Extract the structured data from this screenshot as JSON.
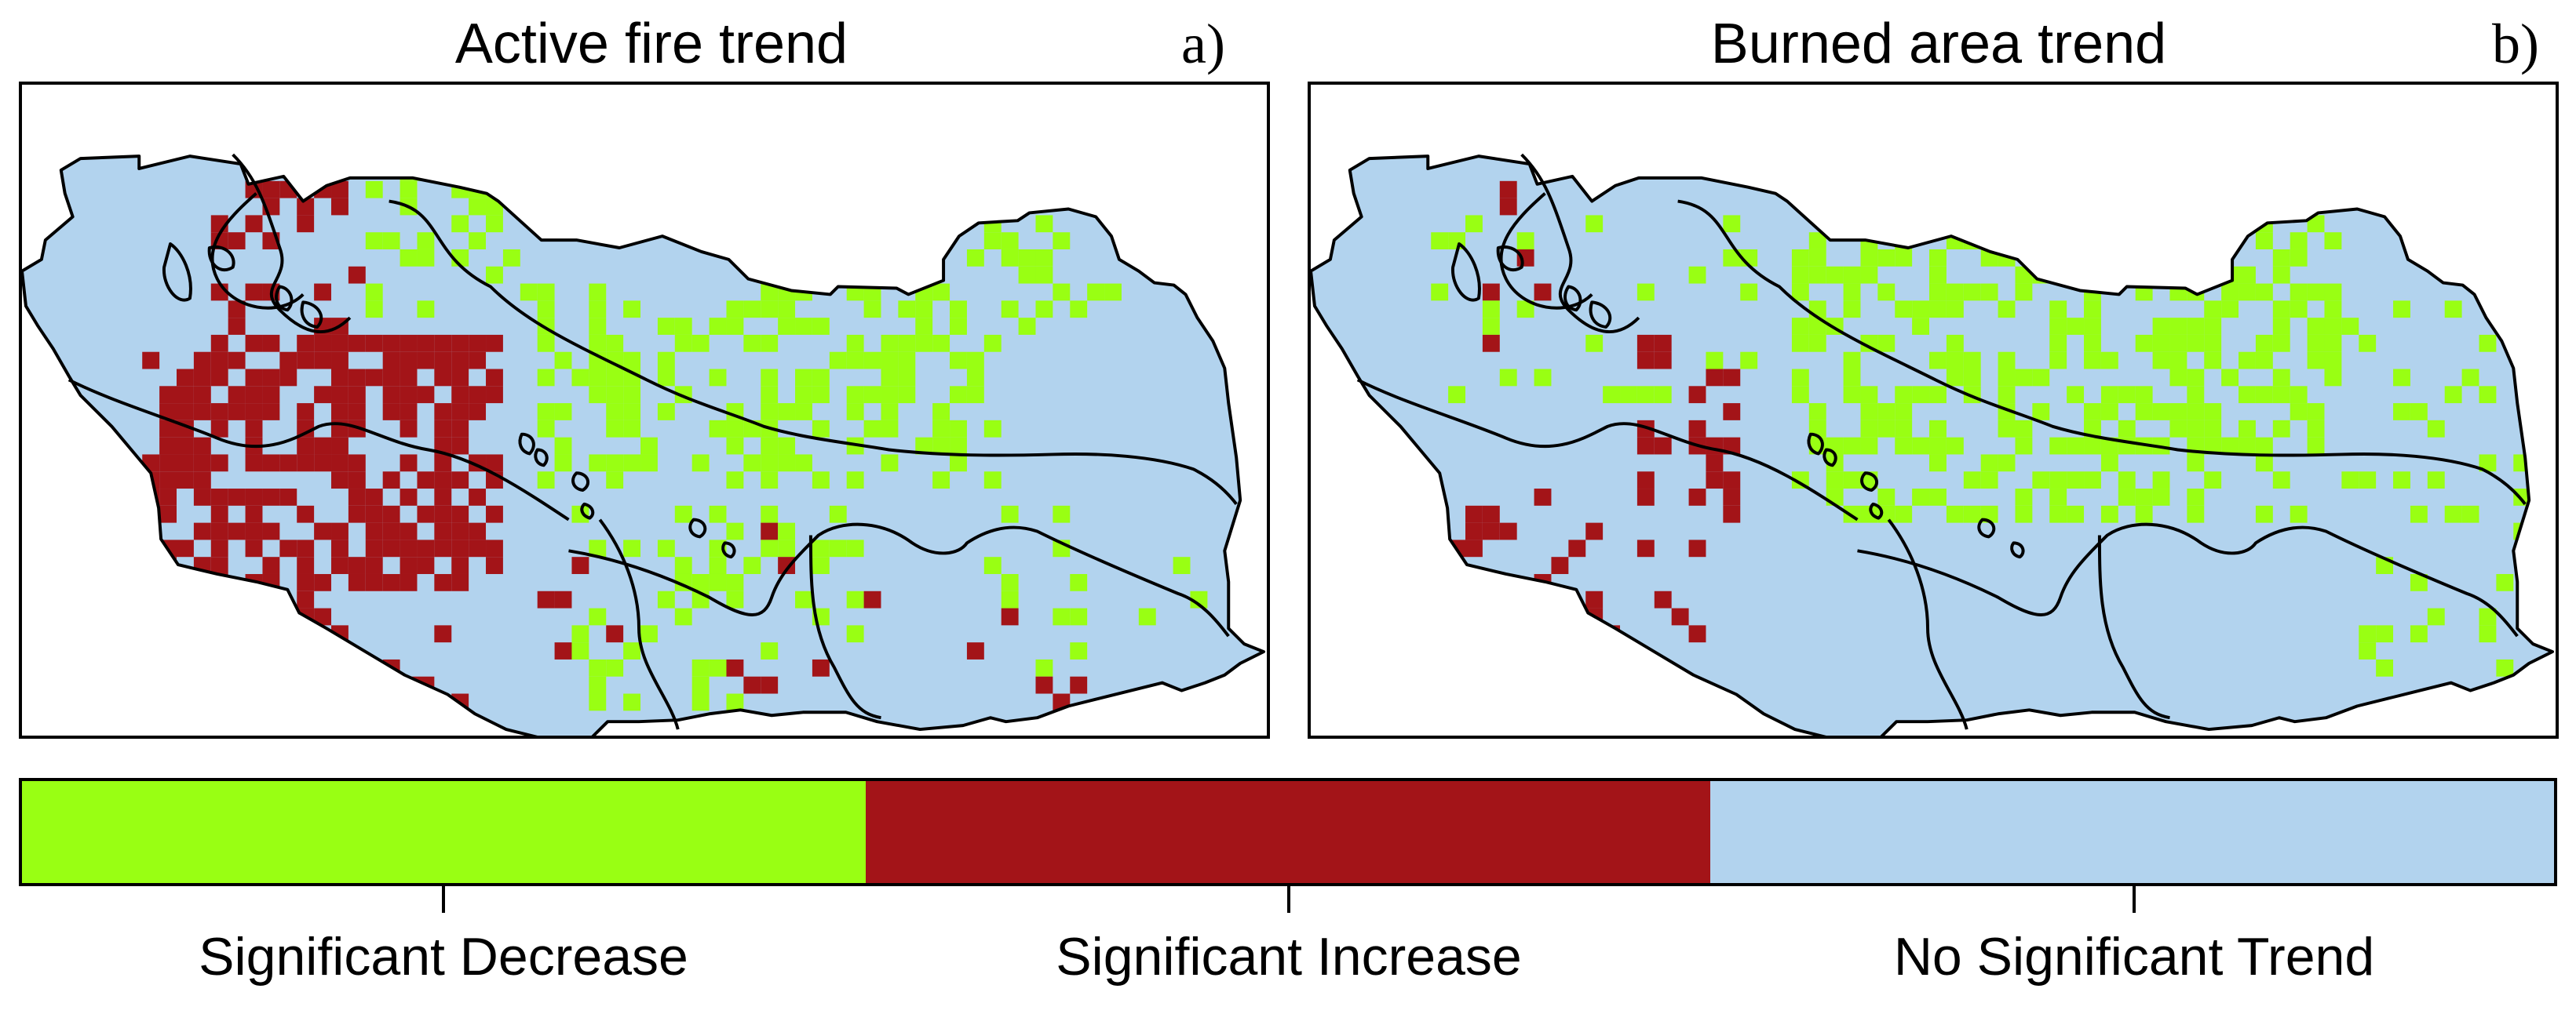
{
  "panels": [
    {
      "title": "Active fire trend",
      "letter": "a)"
    },
    {
      "title": "Burned area trend",
      "letter": "b)"
    }
  ],
  "legend": [
    {
      "label": "Significant Decrease",
      "color": "#99FF13"
    },
    {
      "label": "Significant Increase",
      "color": "#A31418"
    },
    {
      "label": "No Significant Trend",
      "color": "#B2D3EE"
    }
  ]
}
